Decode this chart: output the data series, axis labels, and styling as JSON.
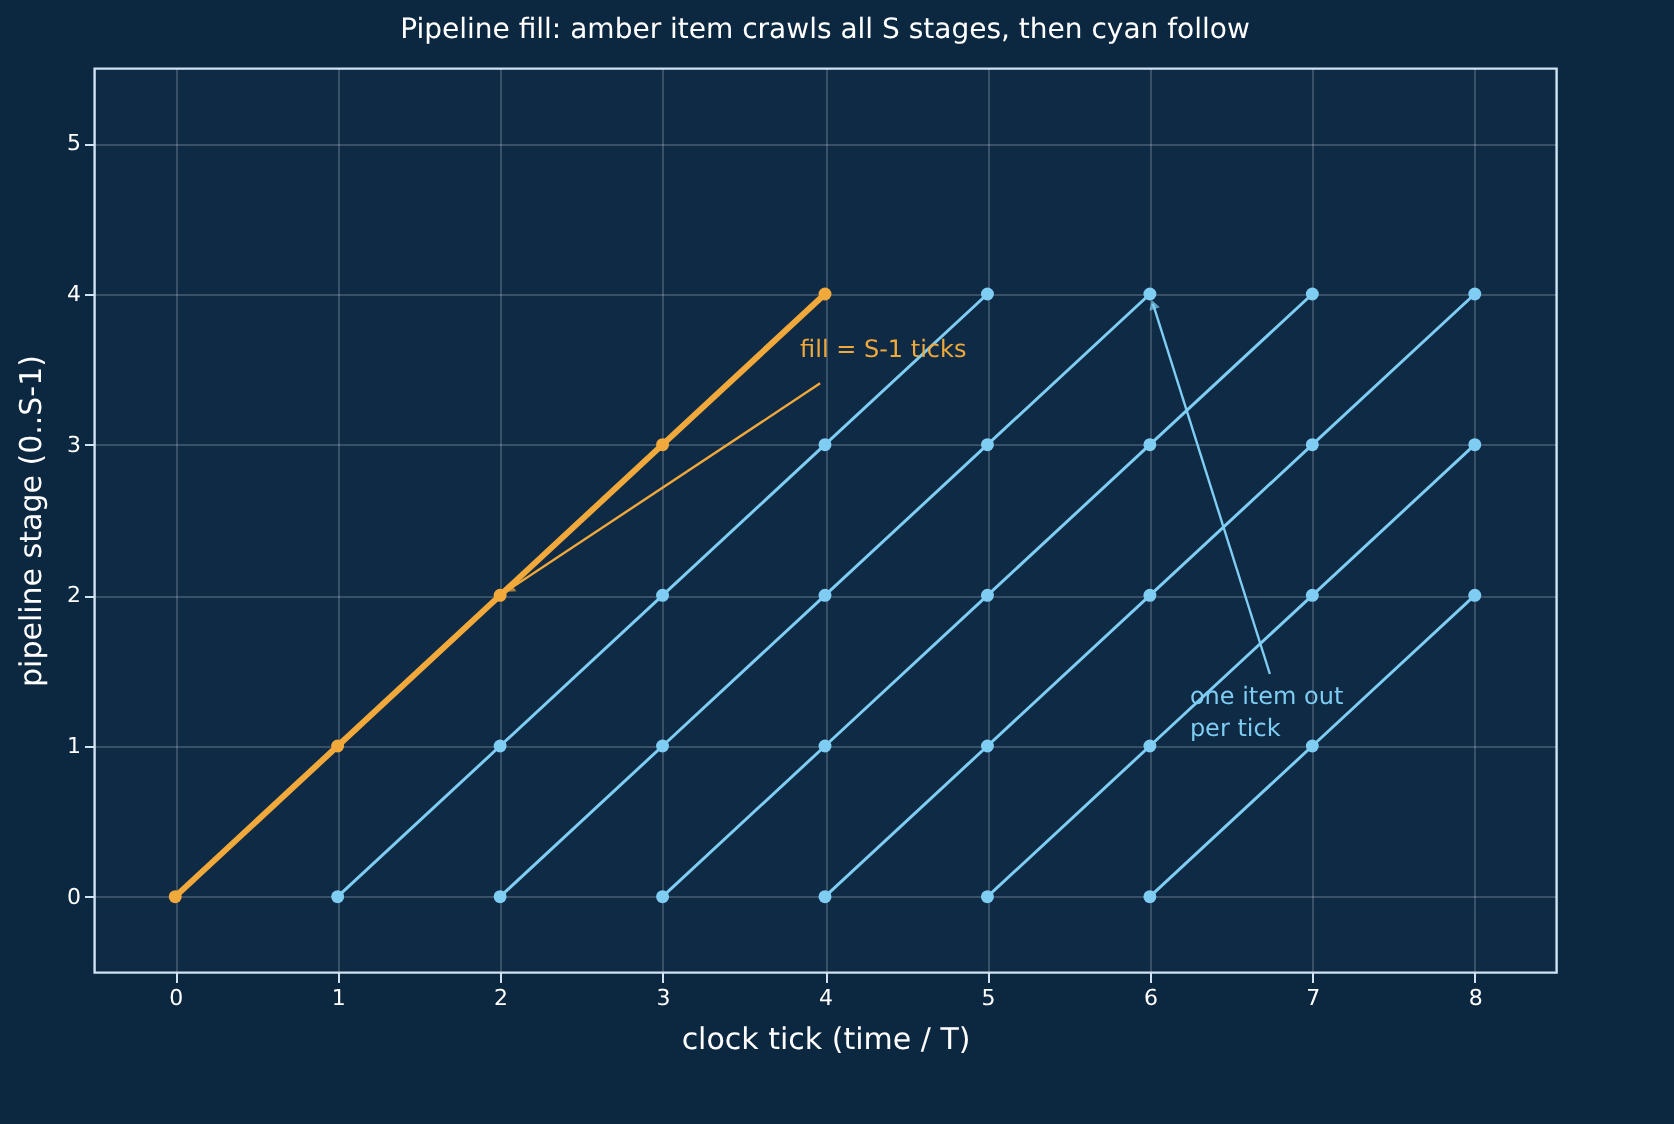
{
  "chart_data": {
    "type": "line",
    "title": "Pipeline fill: amber item crawls all S stages, then cyan follow",
    "xlabel": "clock tick  (time / T)",
    "ylabel": "pipeline stage (0..S-1)",
    "xlim": [
      -0.5,
      8.5
    ],
    "ylim": [
      -0.5,
      5.5
    ],
    "xticks": [
      0,
      1,
      2,
      3,
      4,
      5,
      6,
      7,
      8
    ],
    "yticks": [
      0,
      1,
      2,
      3,
      4,
      5
    ],
    "grid": true,
    "marker": "circle",
    "line_style": "solid",
    "series": [
      {
        "color": "#f2a93b",
        "x": [
          0,
          1,
          2,
          3,
          4
        ],
        "values": [
          0,
          1,
          2,
          3,
          4
        ]
      },
      {
        "color": "#7fcdf2",
        "x": [
          1,
          2,
          3,
          4,
          5
        ],
        "values": [
          0,
          1,
          2,
          3,
          4
        ]
      },
      {
        "color": "#7fcdf2",
        "x": [
          2,
          3,
          4,
          5,
          6
        ],
        "values": [
          0,
          1,
          2,
          3,
          4
        ]
      },
      {
        "color": "#7fcdf2",
        "x": [
          3,
          4,
          5,
          6,
          7
        ],
        "values": [
          0,
          1,
          2,
          3,
          4
        ]
      },
      {
        "color": "#7fcdf2",
        "x": [
          4,
          5,
          6,
          7,
          8
        ],
        "values": [
          0,
          1,
          2,
          3,
          4
        ]
      },
      {
        "color": "#7fcdf2",
        "x": [
          5,
          6,
          7,
          8
        ],
        "values": [
          0,
          1,
          2,
          3
        ]
      },
      {
        "color": "#7fcdf2",
        "x": [
          6,
          7,
          8
        ],
        "values": [
          0,
          1,
          2
        ]
      }
    ],
    "annotations": [
      {
        "text": "fill = S-1 ticks",
        "x": 2,
        "y": 2
      },
      {
        "text": "one item out\nper tick",
        "x": 6,
        "y": 4
      }
    ]
  }
}
